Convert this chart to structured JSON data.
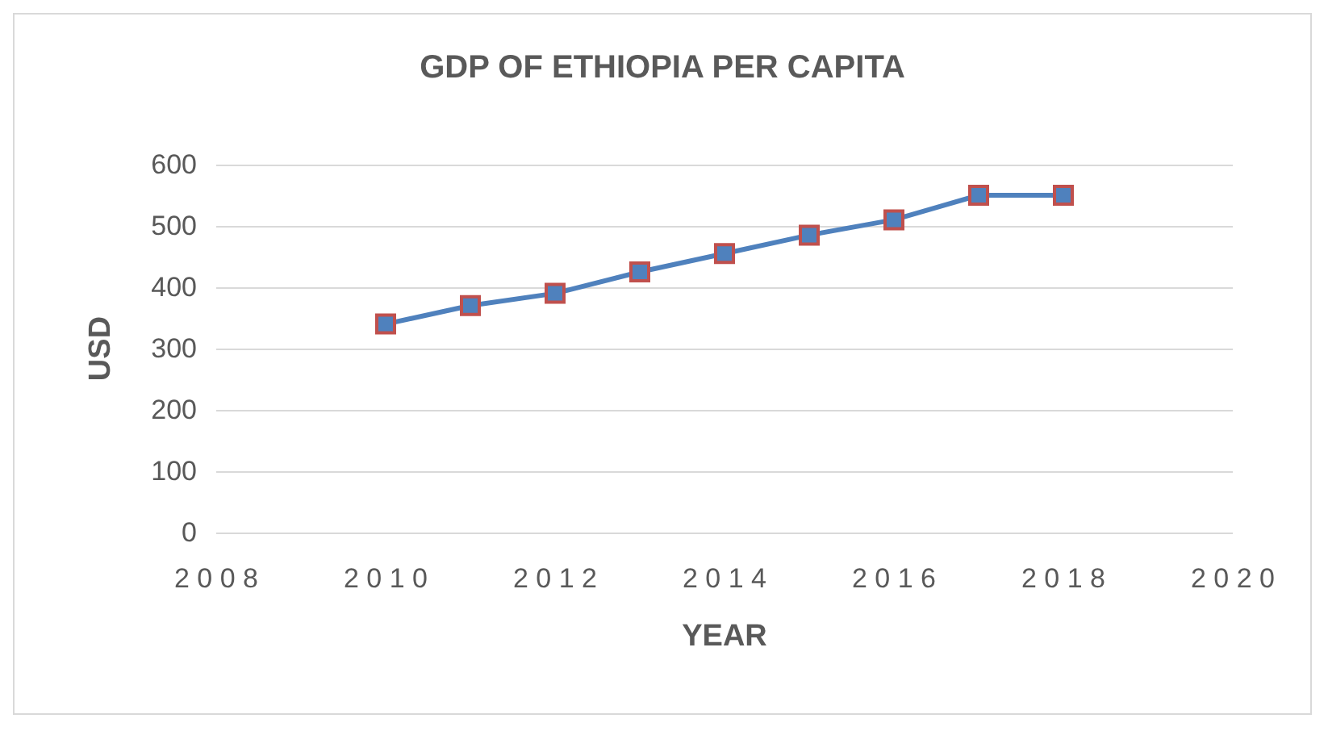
{
  "chart_data": {
    "type": "line",
    "title": "GDP OF ETHIOPIA PER CAPITA",
    "xlabel": "YEAR",
    "ylabel": "USD",
    "x": [
      2010,
      2011,
      2012,
      2013,
      2014,
      2015,
      2016,
      2017,
      2018
    ],
    "series": [
      {
        "color": "#4f81bd",
        "values": [
          340,
          370,
          390,
          425,
          455,
          485,
          510,
          550,
          550
        ]
      }
    ],
    "xlim": [
      2008,
      2020
    ],
    "xticks": [
      2008,
      2010,
      2012,
      2014,
      2016,
      2018,
      2020
    ],
    "ylim": [
      0,
      600
    ],
    "yticks": [
      0,
      100,
      200,
      300,
      400,
      500,
      600
    ],
    "grid": "y",
    "marker": "square",
    "line_style": "solid"
  }
}
